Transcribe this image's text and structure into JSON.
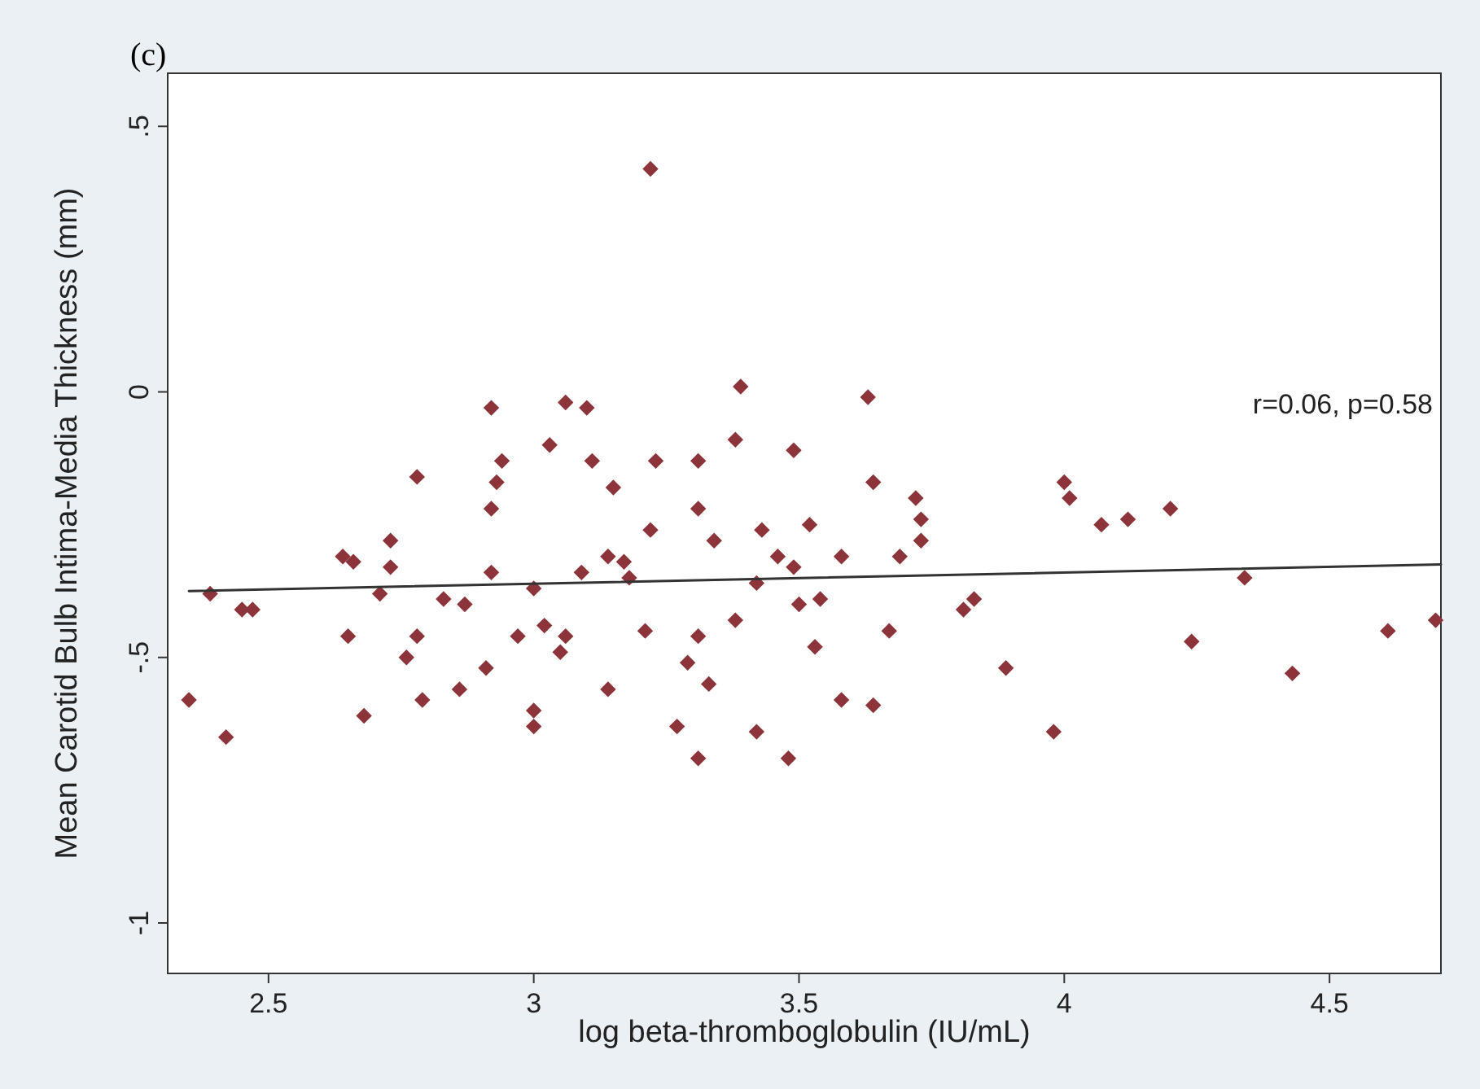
{
  "chart_data": {
    "type": "scatter",
    "title": "(c)",
    "xlabel": "log beta-thromboglobulin (IU/mL)",
    "ylabel": "Mean Carotid Bulb Intima-Media Thickness (mm)",
    "annotations": [
      "r=0.06, p=0.58"
    ],
    "xlim": [
      2.31,
      4.71
    ],
    "ylim": [
      -1.095,
      0.6
    ],
    "xticks": [
      2.5,
      3,
      3.5,
      4,
      4.5
    ],
    "yticks": [
      {
        "value": -1,
        "label": "-1"
      },
      {
        "value": -0.5,
        "label": "-.5"
      },
      {
        "value": 0,
        "label": "0"
      },
      {
        "value": 0.5,
        "label": ".5"
      }
    ],
    "grid": false,
    "marker": "diamond",
    "series": [
      {
        "color": "#8c343a",
        "x": [
          2.35,
          2.39,
          2.42,
          2.45,
          2.47,
          2.64,
          2.66,
          2.65,
          2.68,
          2.71,
          2.73,
          2.73,
          2.76,
          2.78,
          2.78,
          2.79,
          2.83,
          2.86,
          2.87,
          2.91,
          2.92,
          2.92,
          2.92,
          2.93,
          2.94,
          2.97,
          3.0,
          3.0,
          3.0,
          3.02,
          3.03,
          3.05,
          3.06,
          3.06,
          3.09,
          3.1,
          3.11,
          3.15,
          3.22,
          3.23,
          3.31,
          3.31,
          3.34,
          3.39,
          3.38,
          3.43,
          3.49,
          3.52,
          3.46,
          3.49,
          3.58,
          3.63,
          3.64,
          3.72,
          3.73,
          3.73,
          3.69,
          3.14,
          3.17,
          3.18,
          3.42,
          3.14,
          3.21,
          3.31,
          3.29,
          3.33,
          3.38,
          3.5,
          3.54,
          3.53,
          3.58,
          3.64,
          3.67,
          3.27,
          3.42,
          3.31,
          3.48,
          3.81,
          3.83,
          3.89,
          3.98,
          4.0,
          4.01,
          4.07,
          4.12,
          4.2,
          4.34,
          4.24,
          4.43,
          4.61,
          4.7,
          3.22
        ],
        "values": [
          -0.58,
          -0.38,
          -0.65,
          -0.41,
          -0.41,
          -0.31,
          -0.32,
          -0.46,
          -0.61,
          -0.38,
          -0.33,
          -0.28,
          -0.5,
          -0.16,
          -0.46,
          -0.58,
          -0.39,
          -0.56,
          -0.4,
          -0.52,
          -0.03,
          -0.22,
          -0.34,
          -0.17,
          -0.13,
          -0.46,
          -0.63,
          -0.6,
          -0.37,
          -0.44,
          -0.1,
          -0.49,
          -0.02,
          -0.46,
          -0.34,
          -0.03,
          -0.13,
          -0.18,
          -0.26,
          -0.13,
          -0.13,
          -0.22,
          -0.28,
          0.01,
          -0.09,
          -0.26,
          -0.11,
          -0.25,
          -0.31,
          -0.33,
          -0.31,
          -0.01,
          -0.17,
          -0.2,
          -0.24,
          -0.28,
          -0.31,
          -0.31,
          -0.32,
          -0.35,
          -0.36,
          -0.56,
          -0.45,
          -0.46,
          -0.51,
          -0.55,
          -0.43,
          -0.4,
          -0.39,
          -0.48,
          -0.58,
          -0.59,
          -0.45,
          -0.63,
          -0.64,
          -0.69,
          -0.69,
          -0.41,
          -0.39,
          -0.52,
          -0.64,
          -0.17,
          -0.2,
          -0.25,
          -0.24,
          -0.22,
          -0.35,
          -0.47,
          -0.53,
          -0.45,
          -0.43,
          0.42
        ]
      },
      {
        "type": "line",
        "color": "#333333",
        "marker": "none",
        "line_style": "solid",
        "x": [
          2.35,
          4.71
        ],
        "values": [
          -0.375,
          -0.325
        ]
      }
    ]
  }
}
